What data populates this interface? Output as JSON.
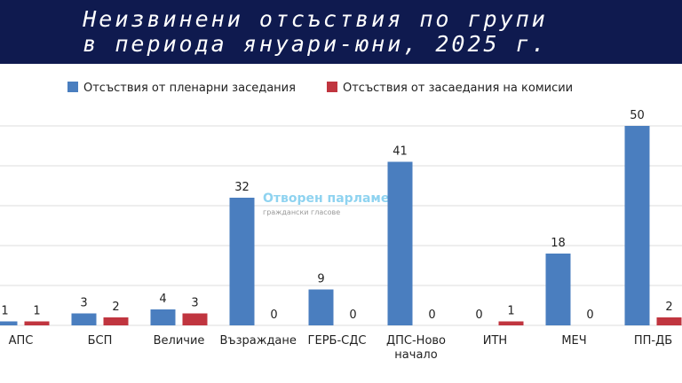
{
  "chart_data": {
    "type": "bar",
    "title": [
      "Неизвинени отсъствия по групи",
      "в периода януари-юни, 2025 г."
    ],
    "categories": [
      "АПС",
      "БСП",
      "Величие",
      "Възраждане",
      "ГЕРБ-СДС",
      "ДПС-Ново начало",
      "ИТН",
      "МЕЧ",
      "ПП-ДБ"
    ],
    "series": [
      {
        "name": "Отсъствия от пленарни заседания",
        "color": "#4a7ebf",
        "values": [
          1,
          3,
          4,
          32,
          9,
          41,
          0,
          18,
          50
        ]
      },
      {
        "name": "Отсъствия от засаедания на комисии",
        "color": "#c0353f",
        "values": [
          1,
          2,
          3,
          0,
          0,
          0,
          1,
          0,
          2
        ]
      }
    ],
    "ylim": [
      0,
      50
    ],
    "yticks": [
      0,
      10,
      20,
      30,
      40,
      50
    ],
    "grid": true,
    "legend": "top",
    "watermark": [
      "Отворен парламент",
      "граждански гласове"
    ]
  }
}
